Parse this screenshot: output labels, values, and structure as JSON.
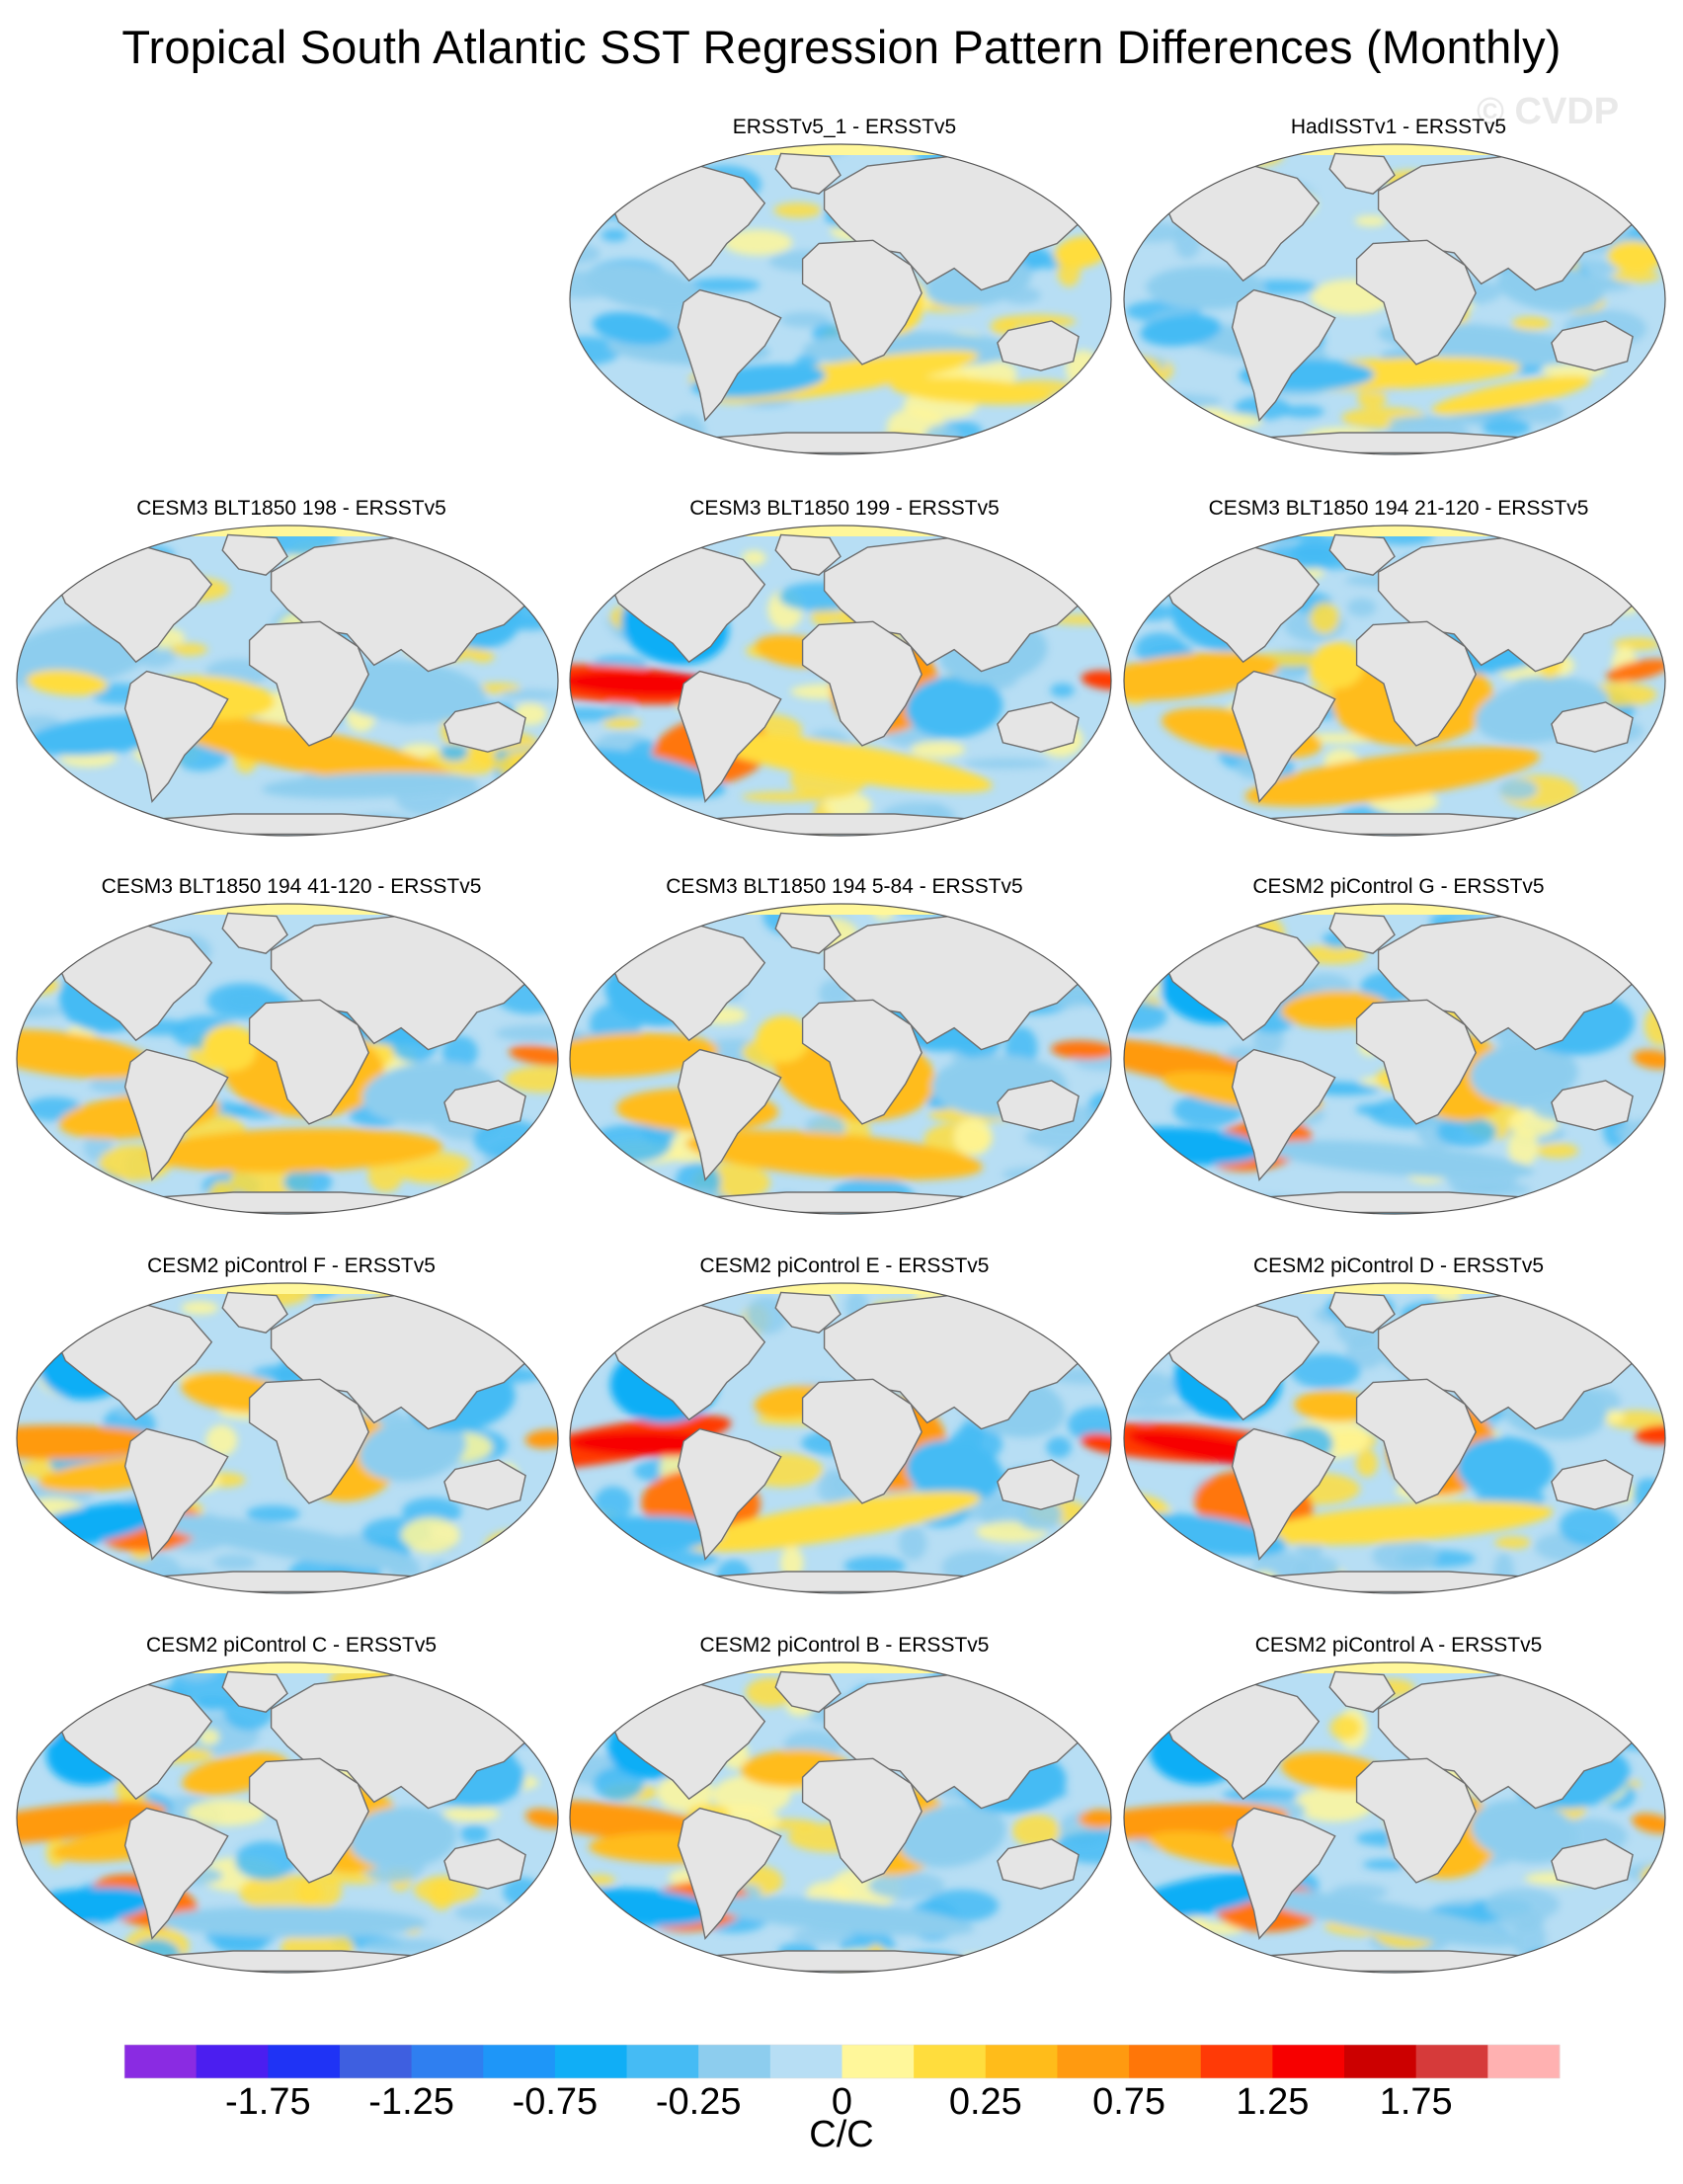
{
  "title": "Tropical South Atlantic SST Regression Pattern Differences (Monthly)",
  "watermark": "© CVDP",
  "chart_data": {
    "type": "heatmap",
    "projection": "global map panels (robinson-like ellipse)",
    "panels": [
      {
        "title": "ERSSTv5_1 - ERSSTv5",
        "pattern": "noise"
      },
      {
        "title": "HadISSTv1 - ERSSTv5",
        "pattern": "noise"
      },
      {
        "title": "CESM3 BLT1850 198 - ERSSTv5",
        "pattern": "weak"
      },
      {
        "title": "CESM3 BLT1850 199 - ERSSTv5",
        "pattern": "strong"
      },
      {
        "title": "CESM3 BLT1850 194 21-120 - ERSSTv5",
        "pattern": "medium"
      },
      {
        "title": "CESM3 BLT1850 194 41-120 - ERSSTv5",
        "pattern": "medium"
      },
      {
        "title": "CESM3 BLT1850 194 5-84 - ERSSTv5",
        "pattern": "medium"
      },
      {
        "title": "CESM2 piControl G - ERSSTv5",
        "pattern": "cesm2"
      },
      {
        "title": "CESM2 piControl F - ERSSTv5",
        "pattern": "cesm2"
      },
      {
        "title": "CESM2 piControl E - ERSSTv5",
        "pattern": "strong"
      },
      {
        "title": "CESM2 piControl D - ERSSTv5",
        "pattern": "strong"
      },
      {
        "title": "CESM2 piControl C - ERSSTv5",
        "pattern": "cesm2"
      },
      {
        "title": "CESM2 piControl B - ERSSTv5",
        "pattern": "cesm2"
      },
      {
        "title": "CESM2 piControl A - ERSSTv5",
        "pattern": "cesm2"
      }
    ],
    "colorbar": {
      "unit": "C/C",
      "levels": [
        -2,
        -1.75,
        -1.5,
        -1.25,
        -1,
        -0.75,
        -0.5,
        -0.25,
        -0.1,
        0,
        0.1,
        0.25,
        0.5,
        0.75,
        1,
        1.25,
        1.5,
        1.75,
        2
      ],
      "tick_labels": [
        "-1.75",
        "-1.25",
        "-0.75",
        "-0.25",
        "0",
        "0.25",
        "0.75",
        "1.25",
        "1.75"
      ],
      "colors": [
        "#8a2be2",
        "#4b1ef0",
        "#1f33f5",
        "#3e5fe0",
        "#2f7ff0",
        "#1e96f8",
        "#10aef6",
        "#45bbf4",
        "#8dcdee",
        "#b7def4",
        "#fff79a",
        "#ffdd3d",
        "#ffbc1a",
        "#ff9a10",
        "#ff7608",
        "#ff3a06",
        "#f70000",
        "#cc0000",
        "#d63a3a",
        "#ffb1b1"
      ]
    }
  }
}
